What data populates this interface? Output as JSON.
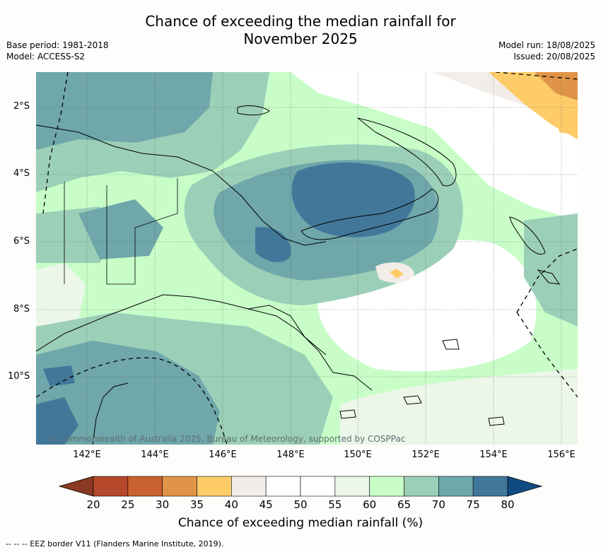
{
  "header": {
    "title_line1": "Chance of exceeding the median rainfall for",
    "title_line2": "November 2025",
    "base_period": "Base period: 1981-2018",
    "model": "Model: ACCESS-S2",
    "model_run": "Model run: 18/08/2025",
    "issued": "Issued: 20/08/2025"
  },
  "map": {
    "credit": "© Commonwealth of Australia 2025, Bureau of Meteorology, supported by COSPPac",
    "lat_labels": [
      "2°S",
      "4°S",
      "6°S",
      "8°S",
      "10°S"
    ],
    "lon_labels": [
      "142°E",
      "144°E",
      "146°E",
      "148°E",
      "150°E",
      "152°E",
      "154°E",
      "156°E"
    ]
  },
  "legend": {
    "title": "Chance of exceeding median rainfall (%)",
    "ticks": [
      "20",
      "25",
      "30",
      "35",
      "40",
      "45",
      "50",
      "55",
      "60",
      "65",
      "70",
      "75",
      "80"
    ],
    "colors": [
      "#b5472a",
      "#c9622f",
      "#e09448",
      "#fdcc69",
      "#f2ede9",
      "#ffffff",
      "#ffffff",
      "#ecf6e9",
      "#c8fdc8",
      "#9ccfb8",
      "#6fa7aa",
      "#41789a"
    ],
    "under_color": "#8a3a22",
    "over_color": "#0f4b82",
    "eez_note": "--  --  -- EEZ border V11 (Flanders Marine Institute, 2019)."
  }
}
